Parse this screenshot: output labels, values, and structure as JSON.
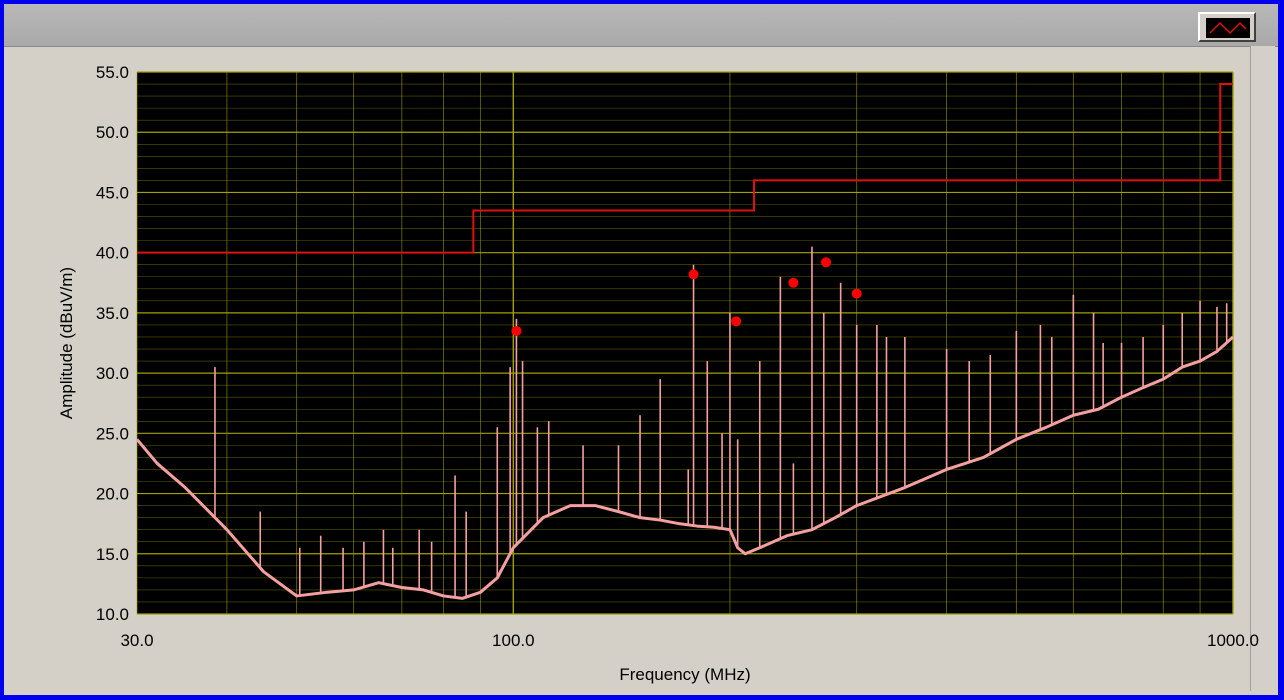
{
  "chart_data": {
    "type": "line",
    "xlabel": "Frequency (MHz)",
    "ylabel": "Amplitude (dBuV/m)",
    "xscale": "log",
    "xlim": [
      30.0,
      1000.0
    ],
    "ylim": [
      10.0,
      55.0
    ],
    "grid": true,
    "xticks": [
      30.0,
      100.0,
      1000.0
    ],
    "xtick_labels": [
      "30.0",
      "100.0",
      "1000.0"
    ],
    "yticks": [
      10,
      15,
      20,
      25,
      30,
      35,
      40,
      45,
      50,
      55
    ],
    "ytick_labels": [
      "10.0",
      "15.0",
      "20.0",
      "25.0",
      "30.0",
      "35.0",
      "40.0",
      "45.0",
      "50.0",
      "55.0"
    ],
    "colors": {
      "background": "#000000",
      "grid": "#a0a000",
      "limit": "#e01010",
      "trace": "#f4a0a0",
      "marker": "#ff0000"
    },
    "series": [
      {
        "role": "limit",
        "x": [
          30,
          88,
          88,
          216,
          216,
          960,
          960,
          1000
        ],
        "y": [
          40.0,
          40.0,
          43.5,
          43.5,
          46.0,
          46.0,
          54.0,
          54.0
        ]
      },
      {
        "role": "trace",
        "baseline": {
          "x": [
            30,
            32,
            35,
            40,
            45,
            50,
            55,
            60,
            65,
            70,
            75,
            80,
            85,
            90,
            95,
            100,
            110,
            120,
            130,
            140,
            150,
            160,
            170,
            180,
            190,
            200,
            205,
            210,
            220,
            240,
            260,
            280,
            300,
            350,
            400,
            450,
            500,
            550,
            600,
            650,
            700,
            750,
            800,
            850,
            900,
            950,
            1000
          ],
          "y": [
            24.5,
            22.5,
            20.5,
            17.0,
            13.5,
            11.5,
            11.8,
            12.0,
            12.6,
            12.2,
            12.0,
            11.5,
            11.3,
            11.8,
            13.0,
            15.5,
            18.0,
            19.0,
            19.0,
            18.5,
            18.0,
            17.8,
            17.5,
            17.3,
            17.2,
            17.0,
            15.5,
            15.0,
            15.5,
            16.5,
            17.0,
            18.0,
            19.0,
            20.5,
            22.0,
            23.0,
            24.5,
            25.5,
            26.5,
            27.0,
            28.0,
            28.8,
            29.5,
            30.5,
            31.0,
            31.8,
            33.0
          ]
        },
        "peaks": {
          "x": [
            38.5,
            44.5,
            50.5,
            54,
            58,
            62,
            66,
            68,
            74,
            77,
            83,
            86,
            95,
            99,
            101,
            103,
            108,
            112,
            125,
            140,
            150,
            160,
            175,
            178,
            186,
            195,
            200,
            205,
            220,
            235,
            245,
            260,
            270,
            285,
            300,
            320,
            330,
            350,
            400,
            430,
            460,
            500,
            540,
            560,
            600,
            640,
            660,
            700,
            750,
            800,
            850,
            900,
            950,
            980
          ],
          "y": [
            30.5,
            18.5,
            15.5,
            16.5,
            15.5,
            16.0,
            17.0,
            15.5,
            17.0,
            16.0,
            21.5,
            18.5,
            25.5,
            30.5,
            34.5,
            31.0,
            25.5,
            26.0,
            24.0,
            24.0,
            26.5,
            29.5,
            22.0,
            39.0,
            31.0,
            25.0,
            35.0,
            24.5,
            31.0,
            38.0,
            22.5,
            40.5,
            35.0,
            37.5,
            34.0,
            34.0,
            33.0,
            33.0,
            32.0,
            31.0,
            31.5,
            33.5,
            34.0,
            33.0,
            36.5,
            35.0,
            32.5,
            32.5,
            33.0,
            34.0,
            35.0,
            36.0,
            35.5,
            35.8
          ]
        }
      }
    ],
    "markers": {
      "x": [
        101,
        178,
        204,
        245,
        272,
        300
      ],
      "y": [
        33.5,
        38.2,
        34.3,
        37.5,
        39.2,
        36.6
      ]
    }
  }
}
